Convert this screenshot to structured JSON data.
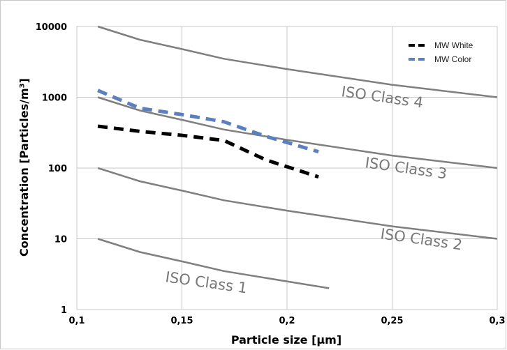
{
  "chart_data": {
    "type": "line",
    "xlabel": "Particle size [μm]",
    "ylabel": "Concentration [Particles/m³]",
    "x_scale": "linear",
    "y_scale": "log",
    "xlim": [
      0.1,
      0.3
    ],
    "ylim": [
      1,
      10000
    ],
    "x_ticks": [
      0.1,
      0.15,
      0.2,
      0.25,
      0.3
    ],
    "x_tick_labels": [
      "0,1",
      "0,15",
      "0,2",
      "0,25",
      "0,3"
    ],
    "y_ticks": [
      1,
      10,
      100,
      1000,
      10000
    ],
    "y_tick_labels": [
      "1",
      "10",
      "100",
      "1000",
      "10000"
    ],
    "grid": true,
    "legend": {
      "placement": "top-right",
      "entries": [
        "MW White",
        "MW Color"
      ]
    },
    "series": [
      {
        "name": "MW White",
        "style": "dashed",
        "color": "#000000",
        "x": [
          0.11,
          0.13,
          0.15,
          0.17,
          0.19,
          0.215
        ],
        "y": [
          390,
          330,
          290,
          245,
          130,
          75
        ]
      },
      {
        "name": "MW Color",
        "style": "dashed",
        "color": "#5b7fbf",
        "x": [
          0.11,
          0.13,
          0.15,
          0.17,
          0.19,
          0.215
        ],
        "y": [
          1250,
          700,
          570,
          450,
          280,
          170
        ]
      },
      {
        "name": "ISO Class 4",
        "style": "solid",
        "color": "#7f7f7f",
        "x": [
          0.11,
          0.13,
          0.15,
          0.17,
          0.2,
          0.25,
          0.3
        ],
        "y": [
          10000,
          6500,
          4800,
          3500,
          2500,
          1500,
          1000
        ]
      },
      {
        "name": "ISO Class 3",
        "style": "solid",
        "color": "#7f7f7f",
        "x": [
          0.11,
          0.13,
          0.15,
          0.17,
          0.2,
          0.25,
          0.3
        ],
        "y": [
          1000,
          650,
          480,
          350,
          250,
          150,
          100
        ]
      },
      {
        "name": "ISO Class 2",
        "style": "solid",
        "color": "#7f7f7f",
        "x": [
          0.11,
          0.13,
          0.15,
          0.17,
          0.2,
          0.25,
          0.3
        ],
        "y": [
          100,
          65,
          48,
          35,
          25,
          15,
          10
        ]
      },
      {
        "name": "ISO Class 1",
        "style": "solid",
        "color": "#7f7f7f",
        "x": [
          0.11,
          0.13,
          0.15,
          0.17,
          0.2,
          0.22
        ],
        "y": [
          10,
          6.5,
          4.8,
          3.5,
          2.5,
          2
        ]
      }
    ],
    "annotations": [
      "ISO Class 4",
      "ISO Class 3",
      "ISO Class 2",
      "ISO Class 1"
    ]
  }
}
